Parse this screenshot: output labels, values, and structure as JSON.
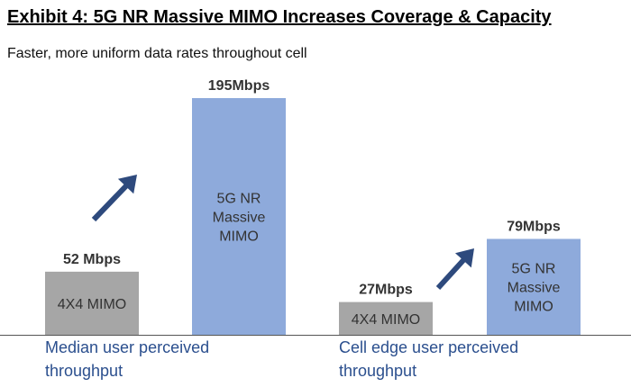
{
  "header": {
    "title": "Exhibit 4: 5G NR Massive MIMO Increases Coverage & Capacity",
    "subtitle": "Faster, more uniform data rates throughout cell"
  },
  "chart_data": {
    "type": "bar",
    "title": "Exhibit 4: 5G NR Massive MIMO Increases Coverage & Capacity",
    "subtitle": "Faster, more uniform data rates throughout cell",
    "unit": "Mbps",
    "groups": [
      {
        "label": [
          "Median user perceived",
          "throughput"
        ],
        "bars": [
          {
            "value": 52,
            "label": "52 Mbps",
            "text": [
              "4X4 MIMO"
            ],
            "color": "#a6a6a6"
          },
          {
            "value": 195,
            "label": "195Mbps",
            "text": [
              "5G NR",
              "Massive",
              "MIMO"
            ],
            "color": "#8eaadb"
          }
        ]
      },
      {
        "label": [
          "Cell edge user perceived",
          "throughput"
        ],
        "bars": [
          {
            "value": 27,
            "label": "27Mbps",
            "text": [
              "4X4 MIMO"
            ],
            "color": "#a6a6a6"
          },
          {
            "value": 79,
            "label": "79Mbps",
            "text": [
              "5G NR",
              "Massive",
              "MIMO"
            ],
            "color": "#8eaadb"
          }
        ]
      }
    ],
    "arrow_color": "#2e4a7d",
    "axis_color": "#555555"
  }
}
